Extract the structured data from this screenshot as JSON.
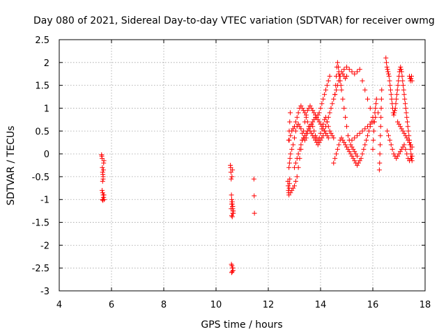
{
  "chart_data": {
    "type": "scatter",
    "title": "Day 080 of 2021, Sidereal Day-to-day VTEC variation (SDTVAR) for receiver owmg",
    "xlabel": "GPS time / hours",
    "ylabel": "SDTVAR / TECUs",
    "xlim": [
      4,
      18
    ],
    "ylim": [
      -3,
      2.5
    ],
    "xticks": [
      "4",
      "6",
      "8",
      "10",
      "12",
      "14",
      "16",
      "18"
    ],
    "yticks": [
      "-3",
      "-2.5",
      "-2",
      "-1.5",
      "-1",
      "-0.5",
      "0",
      "0.5",
      "1",
      "1.5",
      "2",
      "2.5"
    ],
    "grid": true,
    "marker": "+",
    "marker_color": "#ff0000",
    "series": [
      {
        "name": "SDTVAR",
        "x": [
          5.62,
          5.63,
          5.64,
          5.65,
          5.66,
          5.67,
          5.68,
          5.69,
          5.7,
          5.71,
          5.64,
          5.66,
          5.68,
          5.7,
          5.72,
          5.65,
          5.67,
          5.69,
          5.71,
          5.66,
          5.68,
          10.55,
          10.56,
          10.57,
          10.58,
          10.59,
          10.6,
          10.61,
          10.62,
          10.63,
          10.64,
          10.65,
          10.66,
          10.6,
          10.62,
          10.64,
          10.58,
          10.6,
          10.62,
          10.64,
          10.66,
          10.61,
          10.63,
          10.65,
          10.6,
          10.62,
          10.64,
          10.59,
          10.61,
          10.63,
          11.45,
          11.46,
          11.47,
          12.75,
          12.76,
          12.77,
          12.78,
          12.79,
          12.8,
          12.81,
          12.82,
          12.78,
          12.8,
          12.82,
          12.84,
          12.79,
          12.81,
          12.83,
          12.85,
          12.9,
          12.95,
          13.0,
          13.05,
          13.1,
          13.15,
          13.2,
          13.25,
          13.3,
          13.35,
          13.4,
          13.45,
          13.5,
          13.55,
          13.6,
          13.65,
          13.7,
          13.75,
          13.8,
          13.85,
          13.9,
          13.95,
          14.0,
          14.05,
          14.1,
          14.15,
          14.2,
          14.25,
          14.3,
          14.35,
          12.85,
          12.9,
          12.95,
          13.0,
          13.05,
          13.1,
          13.15,
          13.2,
          13.25,
          13.3,
          13.35,
          13.4,
          13.45,
          13.5,
          13.55,
          13.6,
          13.65,
          13.7,
          13.75,
          13.8,
          13.85,
          13.9,
          13.95,
          14.0,
          14.05,
          14.1,
          14.15,
          14.2,
          14.25,
          14.3,
          14.35,
          14.4,
          14.45,
          14.5,
          12.8,
          12.85,
          12.9,
          12.95,
          13.0,
          13.05,
          13.1,
          13.15,
          13.2,
          13.25,
          13.3,
          13.35,
          13.4,
          13.45,
          13.5,
          13.55,
          13.6,
          13.65,
          13.7,
          13.75,
          13.8,
          13.85,
          13.9,
          13.95,
          14.0,
          14.05,
          14.1,
          14.15,
          14.2,
          14.25,
          14.3,
          14.35,
          14.4,
          14.45,
          14.5,
          14.55,
          14.6,
          14.65,
          14.7,
          14.75,
          14.8,
          14.85,
          14.9,
          14.95,
          15.0,
          13.0,
          13.05,
          13.1,
          13.15,
          13.2,
          13.25,
          13.3,
          13.35,
          13.4,
          13.45,
          13.5,
          13.55,
          13.6,
          13.65,
          13.7,
          13.75,
          13.8,
          13.85,
          13.9,
          13.95,
          14.0,
          14.05,
          14.1,
          14.15,
          14.2,
          14.25,
          14.3,
          14.55,
          14.58,
          14.6,
          14.62,
          14.65,
          14.68,
          14.7,
          14.72,
          14.75,
          14.78,
          14.8,
          14.85,
          14.9,
          14.95,
          15.0,
          15.05,
          15.1,
          15.15,
          15.2,
          15.25,
          15.3,
          15.35,
          15.4,
          14.5,
          14.55,
          14.6,
          14.65,
          14.7,
          14.75,
          14.8,
          14.85,
          14.9,
          14.95,
          15.0,
          15.05,
          15.1,
          15.15,
          15.2,
          15.25,
          15.3,
          15.35,
          15.4,
          15.45,
          15.5,
          15.55,
          15.6,
          15.65,
          15.7,
          15.75,
          15.8,
          15.85,
          15.9,
          15.95,
          16.0,
          14.6,
          14.7,
          14.8,
          14.9,
          15.0,
          15.1,
          15.2,
          15.3,
          15.4,
          15.5,
          15.6,
          15.7,
          15.8,
          15.9,
          16.0,
          16.05,
          15.2,
          15.3,
          15.4,
          15.5,
          15.6,
          15.7,
          15.8,
          15.9,
          16.0,
          16.1,
          16.2,
          16.0,
          16.02,
          16.04,
          16.06,
          16.08,
          16.1,
          16.12,
          16.14,
          16.25,
          16.26,
          16.27,
          16.28,
          16.29,
          16.3,
          16.31,
          16.32,
          16.33,
          16.34,
          16.5,
          16.52,
          16.54,
          16.56,
          16.58,
          16.6,
          16.62,
          16.64,
          16.66,
          16.68,
          16.7,
          16.72,
          16.74,
          16.76,
          16.78,
          16.8,
          16.82,
          16.84,
          16.86,
          16.88,
          16.9,
          16.92,
          16.94,
          16.96,
          16.98,
          17.0,
          17.02,
          17.04,
          17.06,
          17.08,
          17.1,
          17.12,
          17.14,
          17.16,
          17.18,
          17.2,
          17.22,
          17.24,
          17.26,
          17.28,
          17.3,
          17.32,
          17.34,
          17.36,
          17.38,
          17.4,
          17.42,
          17.44,
          17.46,
          17.48,
          17.5,
          16.55,
          16.6,
          16.65,
          16.7,
          16.75,
          16.8,
          16.85,
          16.9,
          16.95,
          17.0,
          17.05,
          17.1,
          17.15,
          17.2,
          17.25,
          17.3,
          17.35,
          17.4,
          17.45,
          17.5,
          16.95,
          17.0,
          17.05,
          17.1,
          17.15,
          17.2,
          17.25,
          17.3,
          17.35,
          17.4,
          17.45,
          17.5,
          17.4,
          17.42,
          17.44,
          17.46,
          17.48,
          17.5
        ],
        "y": [
          -0.02,
          -0.05,
          -0.1,
          -0.3,
          -0.4,
          -0.45,
          -0.5,
          -0.35,
          -0.2,
          -0.15,
          -0.8,
          -0.85,
          -0.9,
          -0.95,
          -1.0,
          -1.0,
          -1.02,
          -0.95,
          -0.9,
          -0.6,
          -0.55,
          -0.25,
          -0.3,
          -0.4,
          -0.55,
          -0.9,
          -1.0,
          -1.05,
          -1.1,
          -1.15,
          -1.2,
          -1.25,
          -1.3,
          -1.35,
          -1.38,
          -1.3,
          -1.2,
          -1.1,
          -1.05,
          -1.15,
          -1.25,
          -2.45,
          -2.5,
          -2.55,
          -2.6,
          -2.58,
          -2.5,
          -2.42,
          -0.5,
          -0.35,
          -0.55,
          -0.92,
          -1.3,
          -0.6,
          -0.7,
          -0.8,
          -0.85,
          -0.9,
          -0.75,
          -0.65,
          -0.55,
          0.3,
          0.5,
          0.7,
          0.9,
          -0.3,
          -0.2,
          -0.1,
          -0.85,
          -0.8,
          -0.75,
          -0.7,
          -0.6,
          -0.5,
          -0.3,
          -0.1,
          0.1,
          0.3,
          0.5,
          0.7,
          0.85,
          0.95,
          1.0,
          1.05,
          1.0,
          0.95,
          0.9,
          0.85,
          0.8,
          0.85,
          0.9,
          1.0,
          1.1,
          1.2,
          1.3,
          1.4,
          1.5,
          1.6,
          1.7,
          0.0,
          0.1,
          0.2,
          0.35,
          0.5,
          0.6,
          0.65,
          0.6,
          0.55,
          0.45,
          0.35,
          0.3,
          0.35,
          0.45,
          0.55,
          0.6,
          0.65,
          0.6,
          0.5,
          0.4,
          0.35,
          0.3,
          0.35,
          0.45,
          0.55,
          0.65,
          0.75,
          0.8,
          0.7,
          0.6,
          0.5,
          0.45,
          0.4,
          0.35,
          0.3,
          0.4,
          0.5,
          0.55,
          0.6,
          0.7,
          0.8,
          0.9,
          1.0,
          1.05,
          1.0,
          0.95,
          0.9,
          0.8,
          0.7,
          0.6,
          0.5,
          0.45,
          0.4,
          0.35,
          0.3,
          0.25,
          0.2,
          0.25,
          0.3,
          0.35,
          0.4,
          0.5,
          0.6,
          0.7,
          0.8,
          0.9,
          1.0,
          1.1,
          1.2,
          1.3,
          1.4,
          1.5,
          1.6,
          1.7,
          1.8,
          1.75,
          1.7,
          1.65,
          1.7,
          -0.3,
          -0.2,
          -0.1,
          0.0,
          0.1,
          0.2,
          0.3,
          0.35,
          0.4,
          0.45,
          0.5,
          0.55,
          0.6,
          0.65,
          0.7,
          0.75,
          0.8,
          0.8,
          0.75,
          0.7,
          0.65,
          0.6,
          0.55,
          0.5,
          0.45,
          0.4,
          0.35,
          1.3,
          1.5,
          1.7,
          1.9,
          2.0,
          1.9,
          1.8,
          1.7,
          1.6,
          1.5,
          1.4,
          1.2,
          1.0,
          0.8,
          0.6,
          0.4,
          0.3,
          0.2,
          0.15,
          0.1,
          0.05,
          0.0,
          -0.05,
          -0.2,
          -0.1,
          0.0,
          0.1,
          0.2,
          0.3,
          0.35,
          0.3,
          0.25,
          0.2,
          0.15,
          0.1,
          0.05,
          0.0,
          -0.05,
          -0.1,
          -0.15,
          -0.2,
          -0.25,
          -0.2,
          -0.15,
          -0.1,
          0.0,
          0.1,
          0.2,
          0.3,
          0.4,
          0.5,
          0.6,
          0.7,
          0.8,
          1.7,
          1.75,
          1.8,
          1.85,
          1.9,
          1.85,
          1.8,
          1.75,
          1.8,
          1.85,
          1.6,
          1.4,
          1.2,
          1.0,
          0.8,
          0.7,
          0.3,
          0.35,
          0.4,
          0.45,
          0.5,
          0.55,
          0.6,
          0.65,
          0.7,
          0.8,
          0.9,
          0.1,
          0.3,
          0.5,
          0.7,
          0.9,
          1.0,
          1.1,
          1.2,
          -0.35,
          -0.2,
          0.0,
          0.2,
          0.4,
          0.6,
          0.8,
          1.0,
          1.2,
          1.4,
          2.1,
          2.0,
          1.9,
          1.85,
          1.8,
          1.75,
          1.7,
          1.6,
          1.5,
          1.4,
          1.3,
          1.2,
          1.1,
          1.0,
          0.9,
          0.85,
          0.9,
          0.95,
          1.0,
          1.1,
          1.2,
          1.3,
          1.4,
          1.5,
          1.6,
          1.7,
          1.8,
          1.85,
          1.9,
          1.85,
          1.8,
          1.7,
          1.6,
          1.5,
          1.4,
          1.3,
          1.2,
          1.1,
          1.0,
          0.9,
          0.8,
          0.7,
          0.6,
          0.5,
          0.4,
          0.3,
          0.2,
          0.1,
          0.0,
          -0.1,
          -0.15,
          0.5,
          0.4,
          0.3,
          0.2,
          0.1,
          0.0,
          -0.05,
          -0.1,
          -0.05,
          0.0,
          0.05,
          0.1,
          0.15,
          0.2,
          0.1,
          0.0,
          -0.1,
          -0.15,
          -0.1,
          -0.05,
          0.7,
          0.65,
          0.6,
          0.55,
          0.5,
          0.45,
          0.4,
          0.35,
          0.3,
          0.25,
          0.2,
          0.15,
          1.7,
          1.65,
          1.6,
          1.65,
          1.7,
          1.6
        ]
      }
    ]
  }
}
